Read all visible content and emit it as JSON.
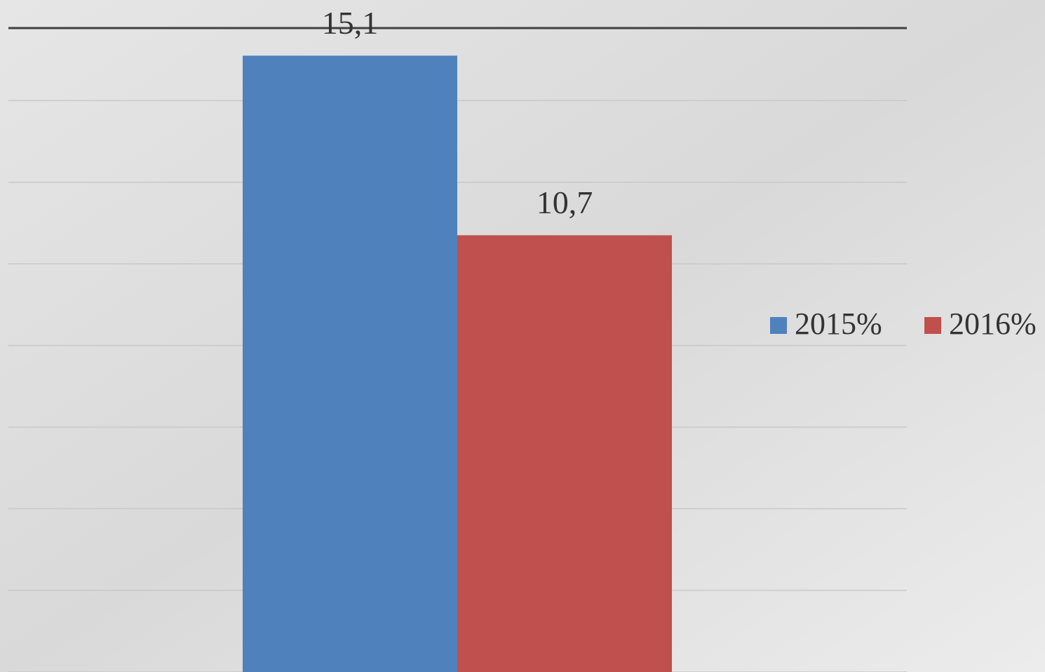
{
  "chart_data": {
    "type": "bar",
    "categories": [
      null
    ],
    "series": [
      {
        "name": "2015%",
        "color": "#4f81bd",
        "values": [
          15.1
        ],
        "value_labels": [
          "15,1"
        ]
      },
      {
        "name": "2016%",
        "color": "#c0504d",
        "values": [
          10.7
        ],
        "value_labels": [
          "10,7"
        ]
      }
    ],
    "ylim": [
      0,
      16
    ],
    "yticks": [
      0,
      2,
      4,
      6,
      8,
      10,
      12,
      14
    ],
    "grid": true,
    "legend": "right"
  }
}
